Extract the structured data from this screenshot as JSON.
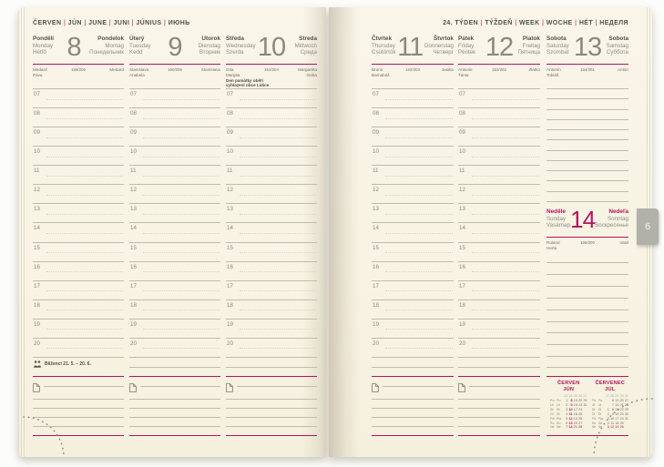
{
  "accent_color": "#b4145c",
  "month_tab": {
    "label": "6"
  },
  "hour_labels": [
    "07",
    "08",
    "09",
    "10",
    "11",
    "12",
    "13",
    "14",
    "15",
    "16",
    "17",
    "18",
    "19",
    "20"
  ],
  "left_page": {
    "month_header": [
      "ČERVEN",
      "JÚN",
      "JUNE",
      "JUNI",
      "JÚNIUS",
      "ИЮНЬ"
    ],
    "zodiac": {
      "icon": "gemini-icon",
      "label": "Blíženci 21. 5. – 20. 6."
    },
    "days": [
      {
        "local_names": [
          "Pondělí",
          "Monday",
          "Hétfő"
        ],
        "number": "8",
        "moon_phase": "☾",
        "alt_names": [
          "Pondelok",
          "Montag",
          "Понедельник"
        ],
        "name_days_left": [
          "Medard",
          "Páva"
        ],
        "day_of_year": "159/206",
        "name_days_right": [
          "Medard"
        ]
      },
      {
        "local_names": [
          "Úterý",
          "Tuesday",
          "Kedd"
        ],
        "number": "9",
        "alt_names": [
          "Utorok",
          "Dienstag",
          "Вторник"
        ],
        "name_days_left": [
          "Stanislava",
          "Anabela"
        ],
        "day_of_year": "160/205",
        "name_days_right": [
          "Stanislava"
        ]
      },
      {
        "local_names": [
          "Středa",
          "Wednesday",
          "Szerda"
        ],
        "number": "10",
        "alt_names": [
          "Streda",
          "Mittwoch",
          "Среда"
        ],
        "name_days_left": [
          "Gita",
          "Margita"
        ],
        "day_of_year": "161/204",
        "name_days_right": [
          "Margaréta",
          "Gréta"
        ],
        "holiday_note": [
          "Den památky obětí",
          "vyhlazení obce Lidice"
        ]
      }
    ]
  },
  "right_page": {
    "week_header": [
      "24. TÝDEN",
      "TÝŽDEŇ",
      "WEEK",
      "WOCHE",
      "HÉT",
      "НЕДЕЛЯ"
    ],
    "days": [
      {
        "local_names": [
          "Čtvrtek",
          "Thursday",
          "Csütörtök"
        ],
        "number": "11",
        "alt_names": [
          "Štvrtok",
          "Donnerstag",
          "Четверг"
        ],
        "name_days_left": [
          "Bruno",
          "Barnabáš"
        ],
        "day_of_year": "162/203",
        "name_days_right": [
          "Jasika"
        ]
      },
      {
        "local_names": [
          "Pátek",
          "Friday",
          "Péntek"
        ],
        "number": "12",
        "alt_names": [
          "Piatok",
          "Freitag",
          "Пятница"
        ],
        "name_days_left": [
          "Antonie",
          "Tánia"
        ],
        "day_of_year": "163/202",
        "name_days_right": [
          "Zlatko"
        ]
      },
      {
        "local_names": [
          "Sobota",
          "Saturday",
          "Szombat"
        ],
        "number": "13",
        "alt_names": [
          "Sobota",
          "Samstag",
          "Суббота"
        ],
        "name_days_left": [
          "Antonín",
          "Tobiáš"
        ],
        "day_of_year": "164/201",
        "name_days_right": [
          "Anton"
        ]
      }
    ],
    "sunday": {
      "local_names": [
        "Neděle",
        "Sunday",
        "Vasárnap"
      ],
      "number": "14",
      "alt_names": [
        "Nedeľa",
        "Sonntag",
        "Воскресенье"
      ],
      "name_days_left": [
        "Roland",
        "Herta"
      ],
      "day_of_year": "165/200",
      "name_days_right": [
        "Vasil"
      ]
    },
    "mini_calendars": [
      {
        "title": "ČERVEN",
        "subtitle": "JÚN",
        "week_numbers": [
          "23",
          "24",
          "25",
          "26",
          "27"
        ],
        "highlight_column": 1,
        "day_rows": [
          {
            "labels": [
              "Po",
              "Po"
            ],
            "dates": [
              "1",
              "8",
              "15",
              "22",
              "29"
            ]
          },
          {
            "labels": [
              "Út",
              "Ut"
            ],
            "dates": [
              "2",
              "9",
              "16",
              "23",
              "30"
            ]
          },
          {
            "labels": [
              "St",
              "St"
            ],
            "dates": [
              "3",
              "10",
              "17",
              "24",
              ""
            ]
          },
          {
            "labels": [
              "Čt",
              "Št"
            ],
            "dates": [
              "4",
              "11",
              "18",
              "25",
              ""
            ]
          },
          {
            "labels": [
              "Pá",
              "Pia"
            ],
            "dates": [
              "5",
              "12",
              "19",
              "26",
              ""
            ]
          },
          {
            "labels": [
              "So",
              "So"
            ],
            "dates": [
              "6",
              "13",
              "20",
              "27",
              ""
            ]
          },
          {
            "labels": [
              "Ne",
              "Ne"
            ],
            "dates": [
              "7",
              "14",
              "21",
              "28",
              ""
            ],
            "is_sunday": true
          }
        ]
      },
      {
        "title": "ČERVENEC",
        "subtitle": "JÚL",
        "week_numbers": [
          "27",
          "28",
          "29",
          "30",
          "31"
        ],
        "highlight_column": -1,
        "day_rows": [
          {
            "labels": [
              "Po",
              "Po"
            ],
            "dates": [
              "",
              "6",
              "13",
              "20",
              "27"
            ]
          },
          {
            "labels": [
              "Út",
              "Ut"
            ],
            "dates": [
              "",
              "7",
              "14",
              "21",
              "28"
            ]
          },
          {
            "labels": [
              "St",
              "St"
            ],
            "dates": [
              "1",
              "8",
              "15",
              "22",
              "29"
            ]
          },
          {
            "labels": [
              "Čt",
              "Št"
            ],
            "dates": [
              "2",
              "9",
              "16",
              "23",
              "30"
            ]
          },
          {
            "labels": [
              "Pá",
              "Pia"
            ],
            "dates": [
              "3",
              "10",
              "17",
              "24",
              "31"
            ]
          },
          {
            "labels": [
              "So",
              "So"
            ],
            "dates": [
              "4",
              "11",
              "18",
              "25",
              ""
            ]
          },
          {
            "labels": [
              "Ne",
              "Ne"
            ],
            "dates": [
              "5",
              "12",
              "19",
              "26",
              ""
            ],
            "is_sunday": true
          }
        ]
      }
    ]
  }
}
